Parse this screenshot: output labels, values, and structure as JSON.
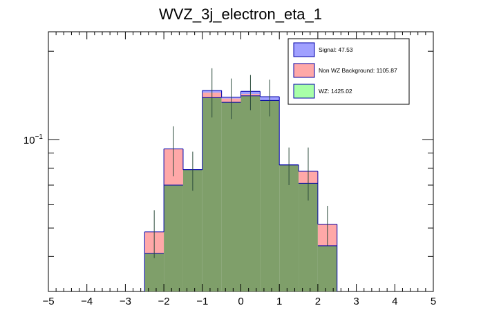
{
  "chart_data": {
    "type": "histogram",
    "title": "WVZ_3j_electron_eta_1",
    "xlabel": "",
    "ylabel": "",
    "x_range": [
      -5,
      5
    ],
    "y_scale": "log",
    "y_range": [
      0.0304,
      0.233
    ],
    "x_ticks": [
      "−5",
      "−4",
      "−3",
      "−2",
      "−1",
      "0",
      "1",
      "2",
      "3",
      "4",
      "5"
    ],
    "y_tick_label": "10",
    "y_tick_exponent": "−1",
    "bin_edges": [
      -2.5,
      -2.0,
      -1.5,
      -1.0,
      -0.5,
      0.0,
      0.5,
      1.0,
      1.5,
      2.0,
      2.5
    ],
    "series": [
      {
        "name": "Signal: 47.53",
        "color": "#a0a0ff",
        "edge": "#0000aa",
        "values": [
          0.0,
          0.0,
          0.0,
          0.0025,
          0.0015,
          0.003,
          0.004,
          0.0,
          0.0,
          0.0
        ]
      },
      {
        "name": "Non WZ Background: 1105.87",
        "color": "#ffa8a8",
        "edge": "#0000aa",
        "values": [
          0.0075,
          0.023,
          0.0,
          0.0055,
          0.004,
          0.002,
          0.0,
          0.0,
          0.007,
          0.008
        ]
      },
      {
        "name": "WZ: 1425.02",
        "color": "#a8ffa8",
        "edge": "#0000aa",
        "values": [
          0.041,
          0.07,
          0.079,
          0.139,
          0.134,
          0.141,
          0.136,
          0.082,
          0.071,
          0.0435
        ]
      }
    ],
    "overlap_color": "#7f9f6a",
    "error_bars": [
      0.009,
      0.018,
      0.012,
      0.028,
      0.022,
      0.02,
      0.02,
      0.012,
      0.016,
      0.008
    ],
    "legend_position": "top-right"
  }
}
